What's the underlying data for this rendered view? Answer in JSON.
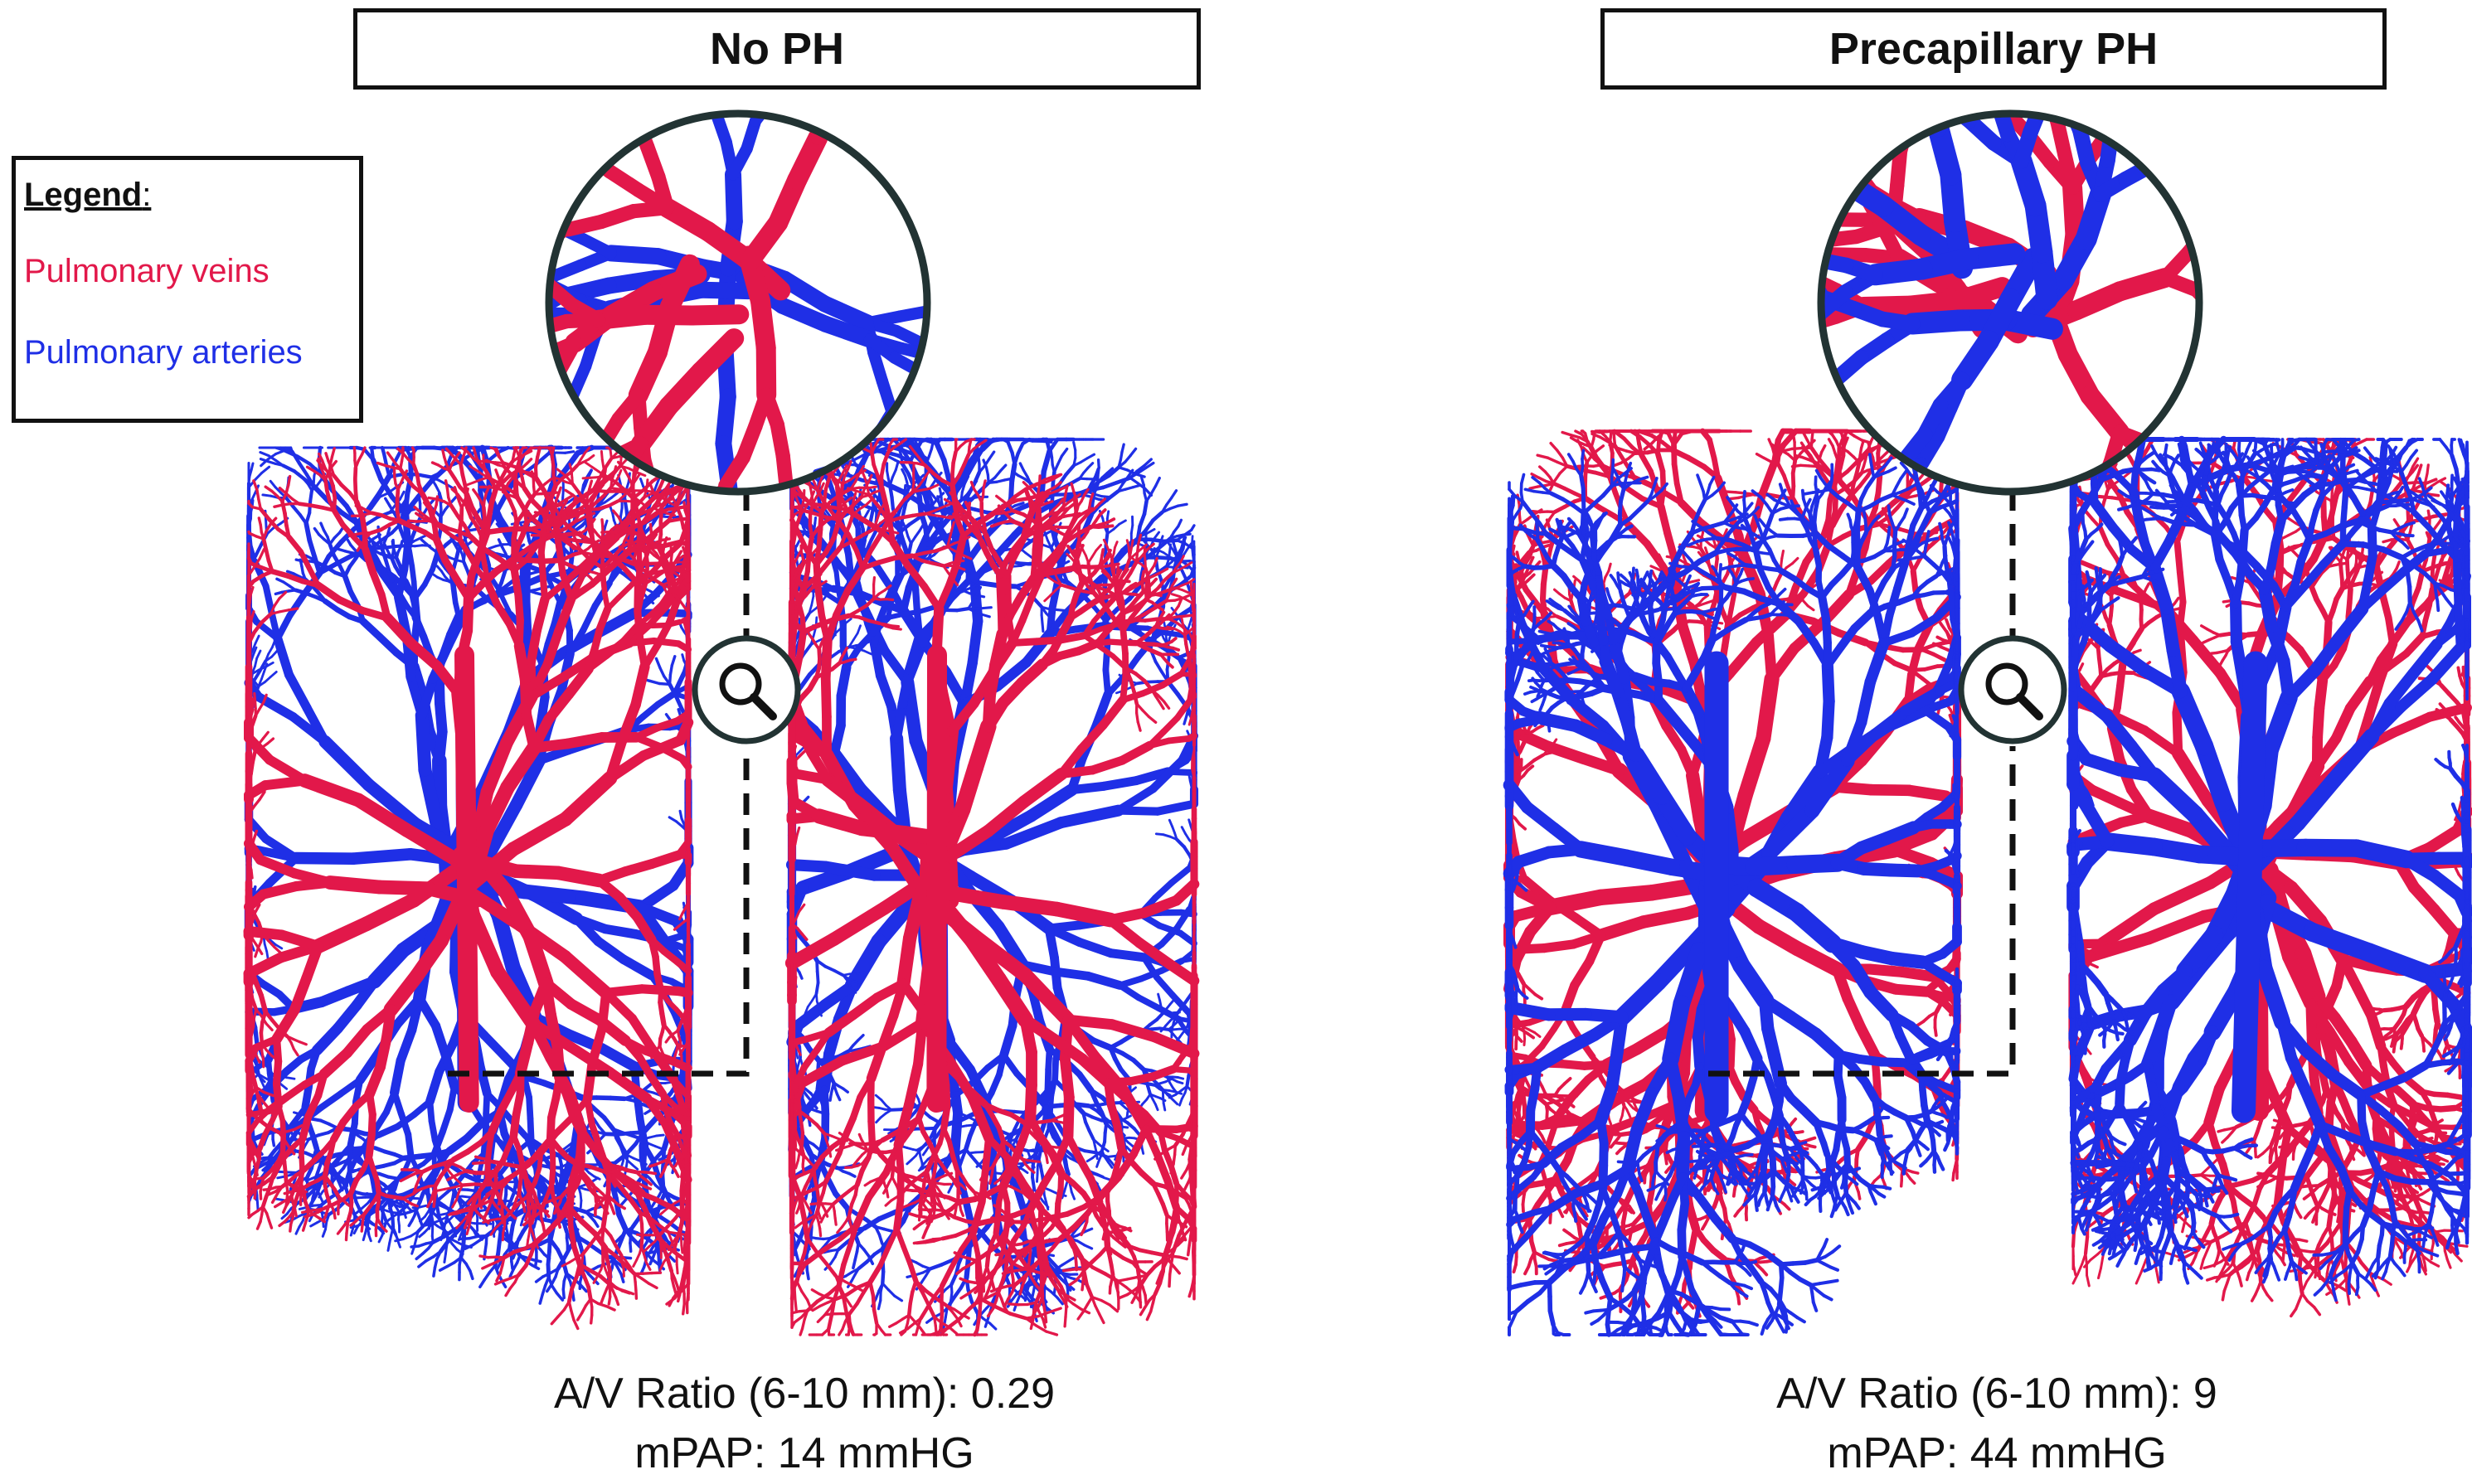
{
  "panels": [
    {
      "title": "No PH",
      "ratio_text": "A/V Ratio (6-10 mm): 0.29",
      "mpap_text": "mPAP: 14 mmHG"
    },
    {
      "title": "Precapillary PH",
      "ratio_text": "A/V Ratio (6-10 mm): 9",
      "mpap_text": "mPAP: 44 mmHG"
    }
  ],
  "legend": {
    "title": "Legend",
    "veins_label": "Pulmonary veins",
    "arteries_label": "Pulmonary arteries"
  },
  "colors": {
    "veins": "#e2184a",
    "arteries": "#1f2fe6",
    "outline": "#111111"
  },
  "icons": {
    "magnifier": "magnifier-icon"
  }
}
